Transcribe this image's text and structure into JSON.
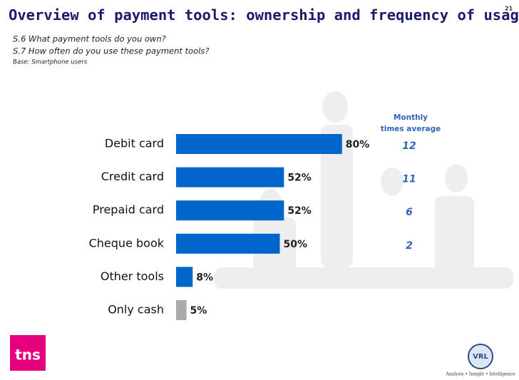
{
  "page_number": "21",
  "chart_data": {
    "type": "bar",
    "orientation": "horizontal",
    "title": "Overview of payment tools: ownership and frequency of usage",
    "subtitle": [
      "S.6 What payment tools do you own?",
      "S.7 How often do you use these payment tools?"
    ],
    "base": "Base: Smartphone users",
    "categories": [
      "Debit card",
      "Credit card",
      "Prepaid card",
      "Cheque book",
      "Other tools",
      "Only cash"
    ],
    "values": [
      80,
      52,
      52,
      50,
      8,
      5
    ],
    "value_labels": [
      "80%",
      "52%",
      "52%",
      "50%",
      "8%",
      "5%"
    ],
    "colors": [
      "#0066cc",
      "#0066cc",
      "#0066cc",
      "#0066cc",
      "#0066cc",
      "#aaaaaa"
    ],
    "xlim": [
      0,
      100
    ],
    "monthly": {
      "title": [
        "Monthly",
        "times average"
      ],
      "values": [
        12,
        11,
        6,
        2,
        null,
        null
      ],
      "color": "#3366bb"
    }
  },
  "logos": {
    "left": "tns",
    "right": "VRL",
    "tagline": "Analysis • Insight • Intelligence"
  }
}
